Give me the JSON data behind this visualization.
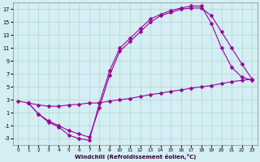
{
  "xlabel": "Windchill (Refroidissement éolien,°C)",
  "xlim": [
    -0.5,
    23.5
  ],
  "ylim": [
    -4,
    18
  ],
  "xticks": [
    0,
    1,
    2,
    3,
    4,
    5,
    6,
    7,
    8,
    9,
    10,
    11,
    12,
    13,
    14,
    15,
    16,
    17,
    18,
    19,
    20,
    21,
    22,
    23
  ],
  "yticks": [
    -3,
    -1,
    1,
    3,
    5,
    7,
    9,
    11,
    13,
    15,
    17
  ],
  "bg_color": "#d4eef4",
  "line_color": "#990099",
  "grid_color": "#b0d8cc",
  "curves": [
    {
      "x": [
        1,
        2,
        3,
        4,
        5,
        6,
        7,
        8,
        9,
        10,
        11,
        12,
        13,
        14,
        15,
        16,
        17,
        18,
        19,
        20,
        21,
        22,
        23
      ],
      "y": [
        2.5,
        0.8,
        -0.5,
        -1.2,
        -2.5,
        -3.0,
        -3.3,
        2.5,
        7.5,
        11.0,
        12.5,
        14.0,
        15.5,
        16.2,
        16.8,
        17.2,
        17.5,
        17.5,
        14.8,
        11.0,
        8.0,
        6.5,
        6.0
      ]
    },
    {
      "x": [
        1,
        2,
        3,
        4,
        5,
        6,
        7,
        8,
        9,
        10,
        11,
        12,
        13,
        14,
        15,
        16,
        17,
        18,
        19,
        20,
        21,
        22,
        23
      ],
      "y": [
        2.5,
        0.8,
        -0.3,
        -1.0,
        -1.8,
        -2.3,
        -2.8,
        1.8,
        6.8,
        10.5,
        12.0,
        13.5,
        15.0,
        16.0,
        16.5,
        17.0,
        17.2,
        17.2,
        16.0,
        13.5,
        11.0,
        8.5,
        6.2
      ]
    },
    {
      "x": [
        0,
        1,
        2,
        3,
        4,
        5,
        6,
        7,
        8,
        9,
        10,
        11,
        12,
        13,
        14,
        15,
        16,
        17,
        18,
        19,
        20,
        21,
        22,
        23
      ],
      "y": [
        2.8,
        2.5,
        2.2,
        2.0,
        2.0,
        2.2,
        2.3,
        2.5,
        2.5,
        2.8,
        3.0,
        3.2,
        3.5,
        3.8,
        4.0,
        4.3,
        4.5,
        4.8,
        5.0,
        5.2,
        5.5,
        5.8,
        6.0,
        6.2
      ]
    }
  ]
}
